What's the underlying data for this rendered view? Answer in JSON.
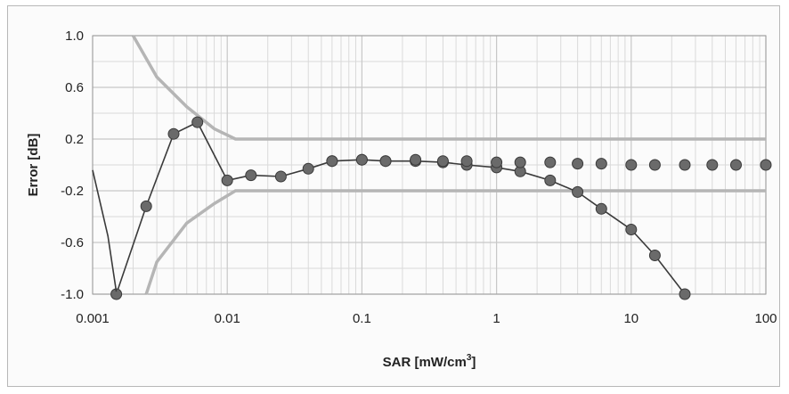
{
  "chart_data": {
    "type": "scatter",
    "title": "",
    "xlabel": "SAR [mW/cm",
    "xlabel_sup": "3",
    "xlabel_tail": "]",
    "ylabel": "Error [dB]",
    "x_scale": "log",
    "xlim": [
      0.001,
      100
    ],
    "ylim": [
      -1.0,
      1.0
    ],
    "grid": true,
    "x_tick_labels": [
      "0.001",
      "0.01",
      "0.1",
      "1",
      "10",
      "100"
    ],
    "x_tick_values": [
      0.001,
      0.01,
      0.1,
      1,
      10,
      100
    ],
    "y_tick_labels": [
      "1.0",
      "0.6",
      "0.2",
      "-0.2",
      "-0.6",
      "-1.0"
    ],
    "y_tick_values": [
      1.0,
      0.6,
      0.2,
      -0.2,
      -0.6,
      -1.0
    ],
    "colors": {
      "limit": "#b5b5b5",
      "series": "#3a3a3a",
      "marker": "#6a6a6a",
      "grid": "#c8c8c8"
    },
    "series": [
      {
        "style": "line-markers",
        "x": [
          0.0015,
          0.0025,
          0.004,
          0.006,
          0.01,
          0.015,
          0.025,
          0.04,
          0.06,
          0.1,
          0.15,
          0.25,
          0.4,
          0.6,
          1.0,
          1.5,
          2.5,
          4,
          6,
          10,
          15,
          25
        ],
        "y": [
          -1.0,
          -0.32,
          0.24,
          0.33,
          -0.12,
          -0.08,
          -0.09,
          -0.03,
          0.03,
          0.04,
          0.03,
          0.03,
          0.02,
          0.0,
          -0.02,
          -0.05,
          -0.12,
          -0.21,
          -0.34,
          -0.5,
          -0.7,
          -1.0
        ]
      },
      {
        "style": "markers",
        "x": [
          0.06,
          0.1,
          0.15,
          0.25,
          0.4,
          0.6,
          1.0,
          1.5,
          2.5,
          4,
          6,
          10,
          15,
          25,
          40,
          60,
          100
        ],
        "y": [
          0.03,
          0.04,
          0.03,
          0.04,
          0.03,
          0.03,
          0.02,
          0.02,
          0.02,
          0.01,
          0.01,
          0.0,
          0.0,
          0.0,
          0.0,
          0.0,
          0.0
        ]
      },
      {
        "style": "line",
        "x": [
          0.001,
          0.0013,
          0.0015
        ],
        "y": [
          -0.04,
          -0.55,
          -0.98
        ]
      }
    ],
    "limits": [
      {
        "x": [
          0.002,
          0.003,
          0.005,
          0.008,
          0.0115,
          100
        ],
        "y": [
          1.0,
          0.68,
          0.45,
          0.28,
          0.2,
          0.2
        ]
      },
      {
        "x": [
          0.0025,
          0.003,
          0.005,
          0.008,
          0.0115,
          100
        ],
        "y": [
          -1.0,
          -0.75,
          -0.45,
          -0.3,
          -0.2,
          -0.2
        ]
      }
    ]
  }
}
